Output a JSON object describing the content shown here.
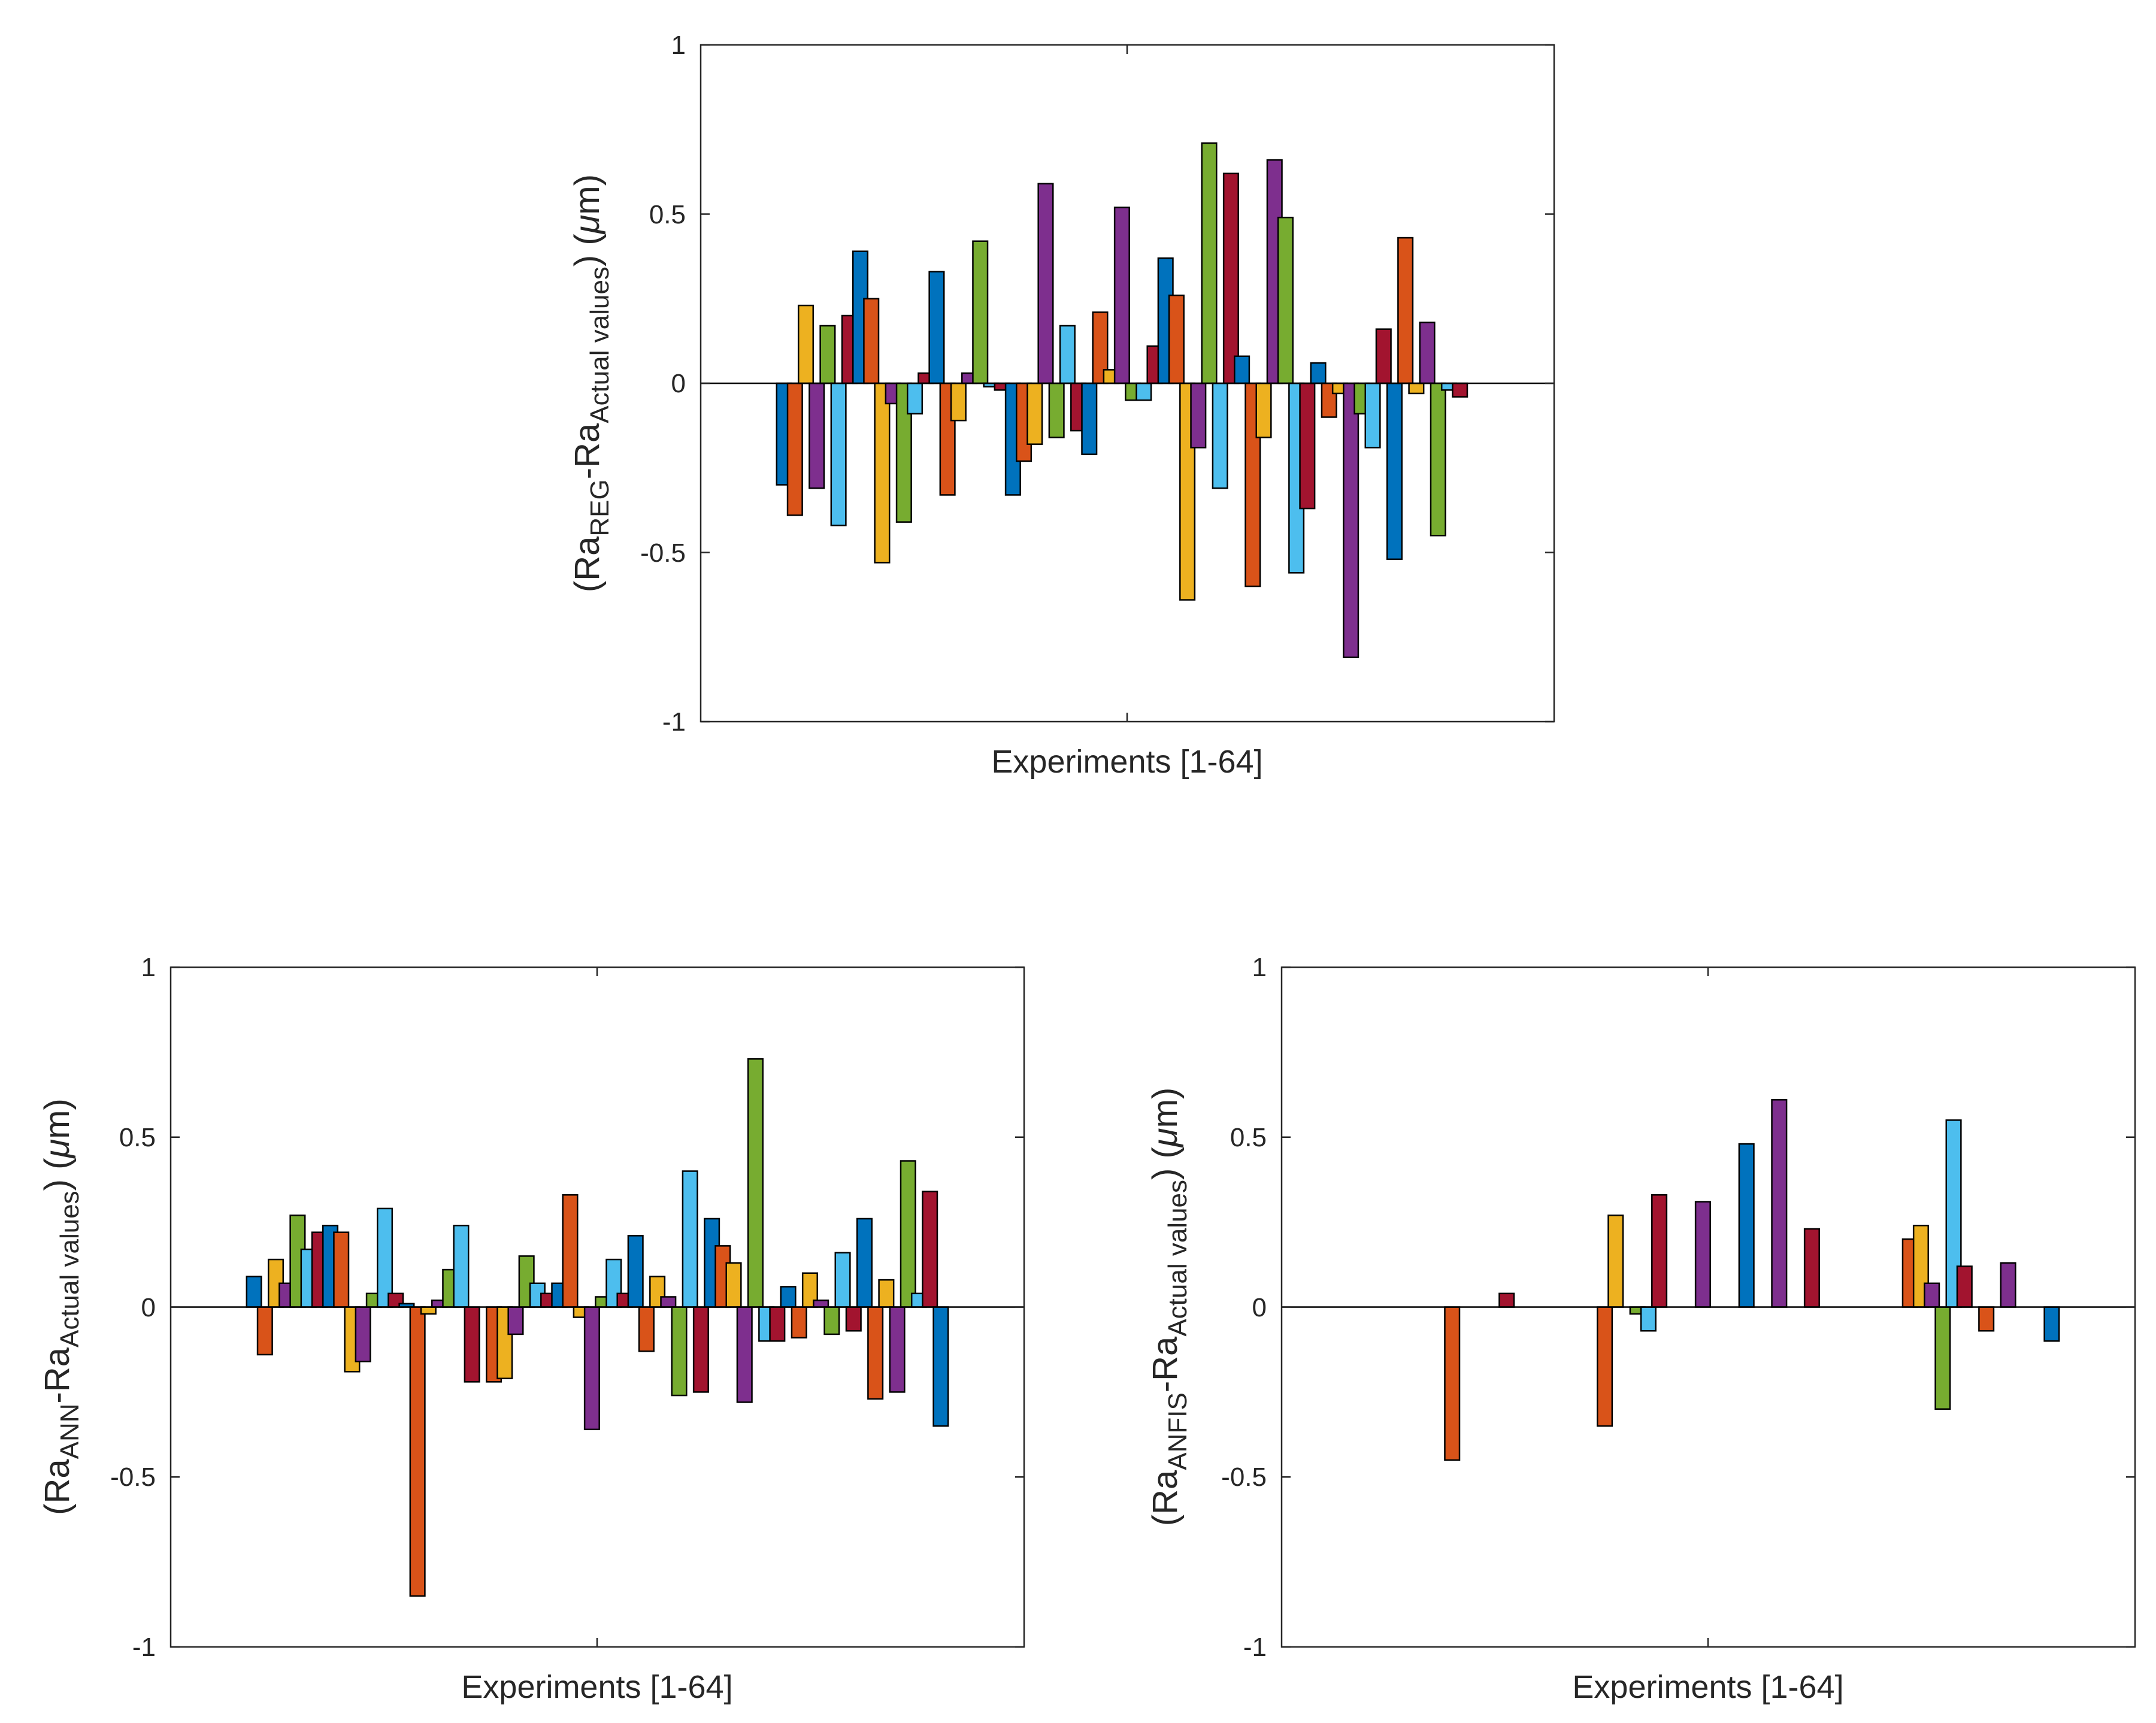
{
  "chart_data": [
    {
      "id": "reg",
      "type": "bar",
      "title": "",
      "xlabel": "Experiments [1-64]",
      "ylabel": {
        "prefix": "(Ra",
        "sub1": "REG",
        "mid": "-Ra",
        "sub2": "Actual values",
        "suffix": ") (",
        "unit": "μ",
        "tail": "m)"
      },
      "ylim": [
        -1,
        1
      ],
      "yticks": [
        "-1",
        "-0.5",
        "0",
        "0.5",
        "1"
      ],
      "grid": false,
      "legend": "none",
      "series_count": 7,
      "experiments": 64,
      "values": [
        -0.3,
        -0.39,
        0.23,
        -0.31,
        0.17,
        -0.42,
        0.2,
        0.39,
        0.25,
        -0.53,
        -0.06,
        -0.41,
        -0.09,
        0.03,
        0.33,
        -0.33,
        -0.11,
        0.03,
        0.42,
        -0.01,
        -0.02,
        -0.33,
        -0.23,
        -0.18,
        0.59,
        -0.16,
        0.17,
        -0.14,
        -0.21,
        0.21,
        0.04,
        0.52,
        -0.05,
        -0.05,
        0.11,
        0.37,
        0.26,
        -0.64,
        -0.19,
        0.71,
        -0.31,
        0.62,
        0.08,
        -0.6,
        -0.16,
        0.66,
        0.49,
        -0.56,
        -0.37,
        0.06,
        -0.1,
        -0.03,
        -0.81,
        -0.09,
        -0.19,
        0.16,
        -0.52,
        0.43,
        -0.03,
        0.18,
        -0.45,
        -0.02,
        -0.04,
        0.0
      ]
    },
    {
      "id": "ann",
      "type": "bar",
      "title": "",
      "xlabel": "Experiments [1-64]",
      "ylabel": {
        "prefix": "(Ra",
        "sub1": "ANN",
        "mid": "-Ra",
        "sub2": "Actual values",
        "suffix": ") (",
        "unit": "μ",
        "tail": "m)"
      },
      "ylim": [
        -1,
        1
      ],
      "yticks": [
        "-1",
        "-0.5",
        "0",
        "0.5",
        "1"
      ],
      "grid": false,
      "legend": "none",
      "series_count": 7,
      "experiments": 64,
      "values": [
        0.09,
        -0.14,
        0.14,
        0.07,
        0.27,
        0.17,
        0.22,
        0.24,
        0.22,
        -0.19,
        -0.16,
        0.04,
        0.29,
        0.04,
        0.01,
        -0.85,
        -0.02,
        0.02,
        0.11,
        0.24,
        -0.22,
        0.0,
        -0.22,
        -0.21,
        -0.08,
        0.15,
        0.07,
        0.04,
        0.07,
        0.33,
        -0.03,
        -0.36,
        0.03,
        0.14,
        0.04,
        0.21,
        -0.13,
        0.09,
        0.03,
        -0.26,
        0.4,
        -0.25,
        0.26,
        0.18,
        0.13,
        -0.28,
        0.73,
        -0.1,
        -0.1,
        0.06,
        -0.09,
        0.1,
        0.02,
        -0.08,
        0.16,
        -0.07,
        0.26,
        -0.27,
        0.08,
        -0.25,
        0.43,
        0.04,
        0.34,
        -0.35
      ]
    },
    {
      "id": "anfis",
      "type": "bar",
      "title": "",
      "xlabel": "Experiments [1-64]",
      "ylabel": {
        "prefix": "(Ra",
        "sub1": "ANFIS",
        "mid": "-Ra",
        "sub2": "Actual values",
        "suffix": ") (",
        "unit": "μ",
        "tail": "m)"
      },
      "ylim": [
        -1,
        1
      ],
      "yticks": [
        "-1",
        "-0.5",
        "0",
        "0.5",
        "1"
      ],
      "grid": false,
      "legend": "none",
      "series_count": 7,
      "experiments": 64,
      "values": [
        0.0,
        0.0,
        0.0,
        0.0,
        0.0,
        0.0,
        0.0,
        0.0,
        -0.45,
        0.0,
        0.0,
        0.0,
        0.0,
        0.04,
        0.0,
        0.0,
        0.0,
        0.0,
        0.0,
        0.0,
        0.0,
        0.0,
        -0.35,
        0.27,
        0.0,
        -0.02,
        -0.07,
        0.33,
        0.0,
        0.0,
        0.0,
        0.31,
        0.0,
        0.0,
        0.0,
        0.48,
        0.0,
        0.0,
        0.61,
        0.0,
        0.0,
        0.23,
        0.0,
        0.0,
        0.0,
        0.0,
        0.0,
        0.0,
        0.0,
        0.0,
        0.2,
        0.24,
        0.07,
        -0.3,
        0.55,
        0.12,
        0.0,
        -0.07,
        0.0,
        0.13,
        0.0,
        0.0,
        0.0,
        -0.1
      ]
    }
  ],
  "colors": [
    "#0072BD",
    "#D95319",
    "#EDB120",
    "#7E2F8E",
    "#77AC30",
    "#4DBEEE",
    "#A2142F"
  ]
}
